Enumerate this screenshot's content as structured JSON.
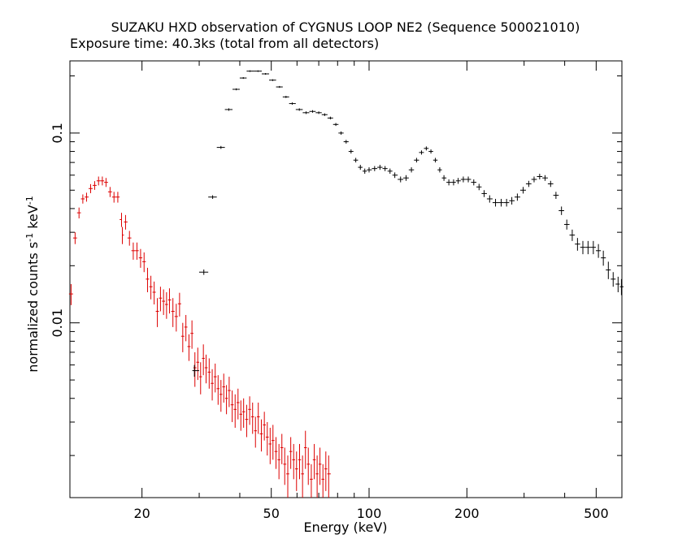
{
  "chart_data": {
    "type": "scatter",
    "title": "SUZAKU HXD observation of CYGNUS LOOP NE2 (Sequence 500021010)",
    "subtitle": "Exposure time: 40.3ks (total from all detectors)",
    "xlabel": "Energy (keV)",
    "ylabel": {
      "main": "normalized counts s",
      "sup1": "-1",
      "mid": " keV",
      "sup2": "-1"
    },
    "x_scale": "log",
    "y_scale": "log",
    "xlim": [
      12,
      600
    ],
    "ylim": [
      0.0012,
      0.24
    ],
    "x_ticks": [
      {
        "value": 20,
        "label": "20"
      },
      {
        "value": 50,
        "label": "50"
      },
      {
        "value": 100,
        "label": "100"
      },
      {
        "value": 200,
        "label": "200"
      },
      {
        "value": 500,
        "label": "500"
      }
    ],
    "y_ticks": [
      {
        "value": 0.01,
        "label": "0.01"
      },
      {
        "value": 0.1,
        "label": "0.1"
      }
    ],
    "colors": {
      "red_series": "#dd0000",
      "black_series": "#000000",
      "axes": "#000000"
    },
    "series": [
      {
        "color": "#dd0000",
        "points": [
          [
            12.1,
            0.0142,
            0.0018
          ],
          [
            12.45,
            0.028,
            0.002
          ],
          [
            12.8,
            0.038,
            0.0025
          ],
          [
            13.15,
            0.045,
            0.0025
          ],
          [
            13.5,
            0.046,
            0.0025
          ],
          [
            13.9,
            0.051,
            0.0028
          ],
          [
            14.3,
            0.053,
            0.0028
          ],
          [
            14.7,
            0.056,
            0.003
          ],
          [
            15.1,
            0.056,
            0.003
          ],
          [
            15.5,
            0.055,
            0.003
          ],
          [
            15.95,
            0.049,
            0.003
          ],
          [
            16.4,
            0.046,
            0.003
          ],
          [
            16.85,
            0.046,
            0.003
          ],
          [
            17.3,
            0.035,
            0.003
          ],
          [
            17.4,
            0.029,
            0.003
          ],
          [
            17.8,
            0.034,
            0.003
          ],
          [
            18.3,
            0.028,
            0.0025
          ],
          [
            18.8,
            0.024,
            0.0025
          ],
          [
            19.3,
            0.024,
            0.0025
          ],
          [
            19.8,
            0.022,
            0.0025
          ],
          [
            20.3,
            0.021,
            0.0025
          ],
          [
            20.8,
            0.017,
            0.0025
          ],
          [
            21.3,
            0.0155,
            0.0022
          ],
          [
            21.8,
            0.0145,
            0.002
          ],
          [
            22.3,
            0.0115,
            0.002
          ],
          [
            22.8,
            0.0135,
            0.002
          ],
          [
            23.3,
            0.013,
            0.002
          ],
          [
            23.8,
            0.0125,
            0.002
          ],
          [
            24.3,
            0.0132,
            0.002
          ],
          [
            24.9,
            0.0115,
            0.002
          ],
          [
            25.5,
            0.0108,
            0.0018
          ],
          [
            26.1,
            0.0126,
            0.0018
          ],
          [
            26.7,
            0.0085,
            0.0015
          ],
          [
            27.3,
            0.0095,
            0.0015
          ],
          [
            27.9,
            0.0075,
            0.0012
          ],
          [
            28.5,
            0.0088,
            0.0015
          ],
          [
            29.1,
            0.0058,
            0.0012
          ],
          [
            29.7,
            0.0062,
            0.0012
          ],
          [
            30.3,
            0.0052,
            0.001
          ],
          [
            30.9,
            0.0065,
            0.0012
          ],
          [
            31.5,
            0.0058,
            0.001
          ],
          [
            32.2,
            0.0055,
            0.001
          ],
          [
            32.9,
            0.0048,
            0.0009
          ],
          [
            33.6,
            0.0052,
            0.0009
          ],
          [
            34.3,
            0.0045,
            0.0008
          ],
          [
            35.0,
            0.0042,
            0.0008
          ],
          [
            35.7,
            0.0046,
            0.0008
          ],
          [
            36.4,
            0.004,
            0.0007
          ],
          [
            37.1,
            0.0044,
            0.0008
          ],
          [
            37.9,
            0.0037,
            0.0007
          ],
          [
            38.7,
            0.0035,
            0.0007
          ],
          [
            39.5,
            0.0038,
            0.0007
          ],
          [
            40.3,
            0.0033,
            0.0006
          ],
          [
            41.1,
            0.0034,
            0.0006
          ],
          [
            42.0,
            0.0031,
            0.0006
          ],
          [
            42.9,
            0.0035,
            0.0006
          ],
          [
            43.8,
            0.0032,
            0.0006
          ],
          [
            44.7,
            0.0027,
            0.0005
          ],
          [
            45.6,
            0.0032,
            0.0006
          ],
          [
            46.6,
            0.0026,
            0.0005
          ],
          [
            47.6,
            0.0029,
            0.0005
          ],
          [
            48.6,
            0.0025,
            0.0005
          ],
          [
            49.6,
            0.0023,
            0.0005
          ],
          [
            50.6,
            0.0024,
            0.0005
          ],
          [
            51.7,
            0.0021,
            0.0004
          ],
          [
            52.8,
            0.0019,
            0.0004
          ],
          [
            53.9,
            0.0022,
            0.0004
          ],
          [
            55.0,
            0.0018,
            0.0004
          ],
          [
            56.2,
            0.0016,
            0.0004
          ],
          [
            57.4,
            0.0021,
            0.0004
          ],
          [
            58.6,
            0.0019,
            0.0004
          ],
          [
            59.8,
            0.0017,
            0.0004
          ],
          [
            61.1,
            0.0019,
            0.0004
          ],
          [
            62.4,
            0.0016,
            0.0004
          ],
          [
            63.7,
            0.0022,
            0.0005
          ],
          [
            65.0,
            0.0018,
            0.0004
          ],
          [
            66.4,
            0.0015,
            0.0003
          ],
          [
            67.8,
            0.0019,
            0.0004
          ],
          [
            69.2,
            0.0016,
            0.0004
          ],
          [
            70.6,
            0.0018,
            0.0004
          ],
          [
            72.1,
            0.0015,
            0.0003
          ],
          [
            73.6,
            0.0017,
            0.0004
          ],
          [
            75.1,
            0.0016,
            0.0004
          ]
        ]
      },
      {
        "color": "#000000",
        "points": [
          [
            29.0,
            0.0056,
            0.0004
          ],
          [
            31.0,
            0.0185,
            0.0006
          ],
          [
            33.0,
            0.046,
            0.001
          ],
          [
            35.0,
            0.084,
            0.0015
          ],
          [
            37.0,
            0.133,
            0.002
          ],
          [
            39.0,
            0.17,
            0.002
          ],
          [
            41.0,
            0.195,
            0.002
          ],
          [
            43.0,
            0.212,
            0.002
          ],
          [
            45.5,
            0.212,
            0.002
          ],
          [
            48.0,
            0.205,
            0.002
          ],
          [
            50.5,
            0.19,
            0.002
          ],
          [
            53.0,
            0.175,
            0.002
          ],
          [
            55.5,
            0.155,
            0.002
          ],
          [
            58.0,
            0.143,
            0.002
          ],
          [
            61.0,
            0.133,
            0.002
          ],
          [
            64.0,
            0.128,
            0.002
          ],
          [
            67.0,
            0.13,
            0.002
          ],
          [
            70.0,
            0.128,
            0.002
          ],
          [
            73.0,
            0.125,
            0.002
          ],
          [
            76.0,
            0.12,
            0.002
          ],
          [
            79.0,
            0.111,
            0.002
          ],
          [
            82.0,
            0.1,
            0.002
          ],
          [
            85.0,
            0.09,
            0.002
          ],
          [
            88.0,
            0.08,
            0.002
          ],
          [
            91.0,
            0.072,
            0.002
          ],
          [
            94.0,
            0.066,
            0.002
          ],
          [
            97.0,
            0.063,
            0.002
          ],
          [
            100.0,
            0.064,
            0.002
          ],
          [
            104.0,
            0.065,
            0.002
          ],
          [
            108.0,
            0.066,
            0.002
          ],
          [
            112.0,
            0.065,
            0.002
          ],
          [
            116.0,
            0.063,
            0.002
          ],
          [
            120.0,
            0.06,
            0.002
          ],
          [
            125.0,
            0.057,
            0.002
          ],
          [
            130.0,
            0.058,
            0.002
          ],
          [
            135.0,
            0.064,
            0.002
          ],
          [
            140.0,
            0.072,
            0.002
          ],
          [
            145.0,
            0.079,
            0.002
          ],
          [
            150.0,
            0.083,
            0.002
          ],
          [
            155.0,
            0.08,
            0.002
          ],
          [
            160.0,
            0.072,
            0.002
          ],
          [
            165.0,
            0.064,
            0.002
          ],
          [
            170.0,
            0.058,
            0.002
          ],
          [
            176.0,
            0.055,
            0.002
          ],
          [
            182.0,
            0.055,
            0.002
          ],
          [
            188.0,
            0.056,
            0.002
          ],
          [
            195.0,
            0.057,
            0.002
          ],
          [
            202.0,
            0.057,
            0.002
          ],
          [
            210.0,
            0.055,
            0.002
          ],
          [
            218.0,
            0.052,
            0.002
          ],
          [
            226.0,
            0.048,
            0.002
          ],
          [
            235.0,
            0.045,
            0.002
          ],
          [
            245.0,
            0.043,
            0.002
          ],
          [
            255.0,
            0.043,
            0.002
          ],
          [
            265.0,
            0.043,
            0.002
          ],
          [
            275.0,
            0.044,
            0.002
          ],
          [
            286.0,
            0.046,
            0.002
          ],
          [
            298.0,
            0.05,
            0.002
          ],
          [
            310.0,
            0.054,
            0.002
          ],
          [
            322.0,
            0.057,
            0.002
          ],
          [
            335.0,
            0.059,
            0.002
          ],
          [
            348.0,
            0.058,
            0.002
          ],
          [
            362.0,
            0.054,
            0.002
          ],
          [
            376.0,
            0.047,
            0.002
          ],
          [
            391.0,
            0.039,
            0.002
          ],
          [
            406.0,
            0.033,
            0.002
          ],
          [
            422.0,
            0.029,
            0.002
          ],
          [
            438.0,
            0.026,
            0.002
          ],
          [
            455.0,
            0.025,
            0.002
          ],
          [
            472.0,
            0.025,
            0.002
          ],
          [
            490.0,
            0.025,
            0.002
          ],
          [
            508.0,
            0.024,
            0.002
          ],
          [
            526.0,
            0.022,
            0.002
          ],
          [
            545.0,
            0.019,
            0.002
          ],
          [
            564.0,
            0.017,
            0.0015
          ],
          [
            584.0,
            0.016,
            0.0015
          ],
          [
            598.0,
            0.0155,
            0.0015
          ]
        ]
      }
    ]
  }
}
